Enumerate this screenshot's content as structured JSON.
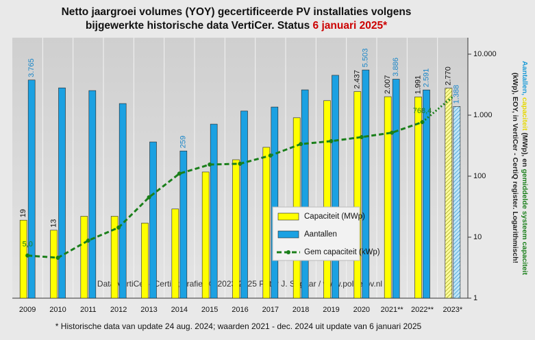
{
  "chart_data": {
    "type": "bar-line",
    "title_lines": [
      [
        {
          "text": "Netto jaargroei volumes (YOY) gecertificeerde PV installaties volgens",
          "color": "#111111"
        }
      ],
      [
        {
          "text": "bijgewerkte historische data VertiCer. Status ",
          "color": "#111111"
        },
        {
          "text": "6 januari 2025*",
          "color": "#cc0000"
        }
      ]
    ],
    "y_axis_label_lines": [
      [
        {
          "text": "Aantallen, ",
          "color": "#1a9ad6"
        },
        {
          "text": "capaciteit",
          "color": "#e6d800"
        },
        {
          "text": " (MWp), en ",
          "color": "#222222"
        },
        {
          "text": "gemiddelde systeem capaciteit",
          "color": "#1a7f1a"
        }
      ],
      [
        {
          "text": "(kWp), EOY, in VertiCer - CertiQ register. Logarithmisch!",
          "color": "#222222"
        }
      ]
    ],
    "annotation": "Data VertiCer - CertiQ;  grafiek © 2023-2025  Peter J. Segaar / www.polderpv.nl",
    "footnote": "* Historische data van update 24 aug. 2024; waarden 2021 - dec. 2024 uit update van 6 januari 2025",
    "categories": [
      "2009",
      "2010",
      "2011",
      "2012",
      "2013",
      "2014",
      "2015",
      "2016",
      "2017",
      "2018",
      "2019",
      "2020",
      "2021**",
      "2022**",
      "2023*"
    ],
    "log_scale": true,
    "ylim": [
      1,
      18600
    ],
    "yticks": [
      1,
      10,
      100,
      {
        "value": 1000,
        "label": "1.000"
      },
      {
        "value": 10000,
        "label": "10.000"
      }
    ],
    "legend": "center-right",
    "series": [
      {
        "name": "Capaciteit (MWp)",
        "kind": "bar",
        "color": "#ffff00",
        "label_color": "#111111",
        "values": [
          19,
          13,
          22,
          22,
          17,
          29,
          117,
          186,
          297,
          906,
          1730,
          2437,
          2007,
          1991,
          2770
        ],
        "value_labels": [
          "19",
          "13",
          null,
          null,
          null,
          null,
          null,
          null,
          null,
          null,
          null,
          "2.437",
          "2.007",
          "1.991",
          "2.770"
        ],
        "hatched": [
          false,
          false,
          false,
          false,
          false,
          false,
          false,
          false,
          false,
          false,
          false,
          false,
          false,
          false,
          true
        ]
      },
      {
        "name": "Aantallen",
        "kind": "bar",
        "color": "#1ba1e2",
        "label_color": "#1a86c8",
        "values": [
          3765,
          2800,
          2530,
          1550,
          364,
          259,
          713,
          1170,
          1360,
          2600,
          4500,
          5503,
          3886,
          2591,
          1388
        ],
        "value_labels": [
          "3.765",
          null,
          null,
          null,
          null,
          "259",
          null,
          null,
          null,
          null,
          null,
          "5.503",
          "3.886",
          "2.591",
          "1.388"
        ],
        "hatched": [
          false,
          false,
          false,
          false,
          false,
          false,
          false,
          false,
          false,
          false,
          false,
          false,
          false,
          false,
          true
        ]
      },
      {
        "name": "Gem capaciteit (kWp)",
        "kind": "line",
        "color": "#1a7f1a",
        "label_color": "#1a7f1a",
        "values": [
          5.0,
          4.6,
          8.8,
          14.4,
          45,
          110,
          155,
          160,
          218,
          336,
          375,
          437,
          516,
          768.4,
          1996
        ],
        "value_labels": [
          "5,0",
          null,
          null,
          null,
          null,
          null,
          null,
          null,
          null,
          null,
          null,
          null,
          null,
          "768,4",
          null
        ],
        "hatched": [
          false,
          false,
          false,
          false,
          false,
          false,
          false,
          false,
          false,
          false,
          false,
          false,
          false,
          false,
          true
        ]
      }
    ]
  }
}
